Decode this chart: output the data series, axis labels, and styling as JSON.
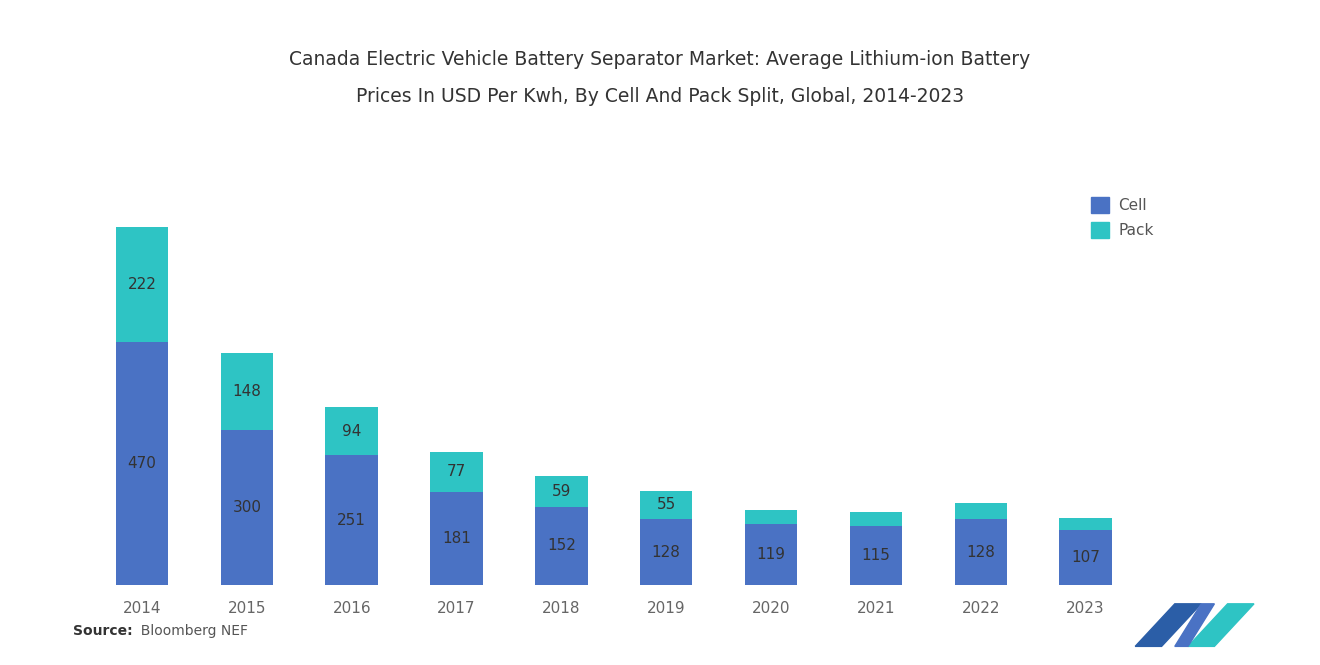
{
  "title_line1": "Canada Electric Vehicle Battery Separator Market: Average Lithium-ion Battery",
  "title_line2": "Prices In USD Per Kwh, By Cell And Pack Split, Global, 2014-2023",
  "years": [
    "2014",
    "2015",
    "2016",
    "2017",
    "2018",
    "2019",
    "2020",
    "2021",
    "2022",
    "2023"
  ],
  "cell_values": [
    470,
    300,
    251,
    181,
    152,
    128,
    119,
    115,
    128,
    107
  ],
  "pack_values": [
    222,
    148,
    94,
    77,
    59,
    55,
    26,
    26,
    30,
    22
  ],
  "pack_labels": [
    222,
    148,
    94,
    77,
    59,
    55,
    null,
    null,
    null,
    null
  ],
  "cell_color": "#4A72C4",
  "pack_color": "#2EC4C4",
  "background_color": "#FFFFFF",
  "source_bold": "Source:",
  "source_normal": "  Bloomberg NEF",
  "legend_cell": "Cell",
  "legend_pack": "Pack",
  "title_fontsize": 13.5,
  "label_fontsize": 11,
  "axis_label_fontsize": 11,
  "source_fontsize": 10,
  "ylim_max": 900,
  "bar_width": 0.5
}
